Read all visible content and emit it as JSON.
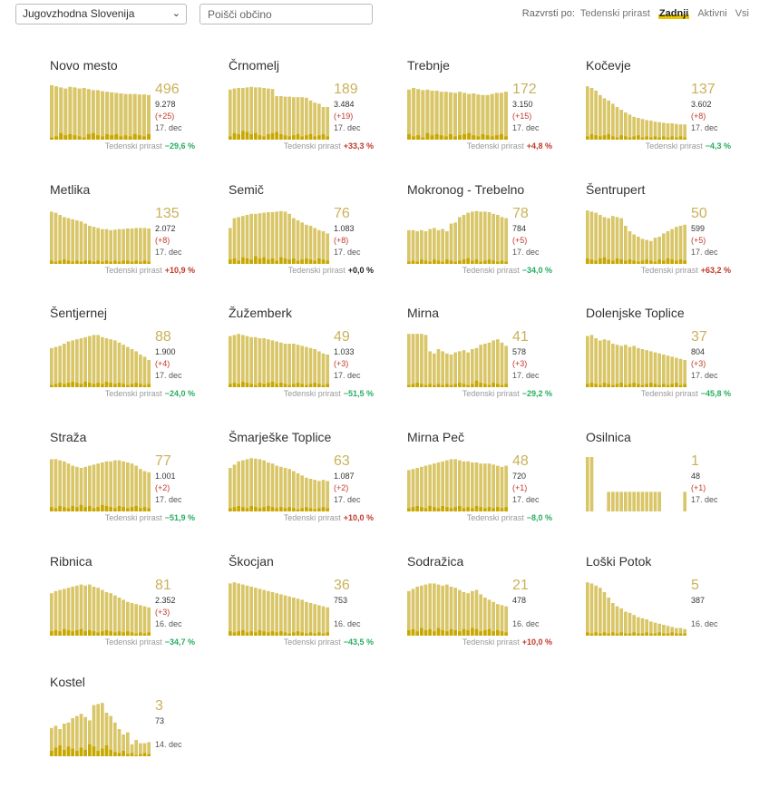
{
  "filters": {
    "region_selected": "Jugovzhodna Slovenija",
    "search_placeholder": "Poišči občino",
    "sort_label": "Razvrsti po:",
    "sort_options": [
      "Tedenski prirast",
      "Zadnji",
      "Aktivni",
      "Vsi"
    ],
    "sort_active": "Zadnji"
  },
  "growth_label": "Tedenski prirast",
  "colors": {
    "bar_active": "#d9c668",
    "bar_daily": "#c8a800",
    "accent": "#e9c400",
    "positive": "#c0392b",
    "negative": "#27ae60"
  },
  "municipalities": [
    {
      "name": "Novo mesto",
      "active": "496",
      "total": "9.278",
      "delta": "(+25)",
      "date": "17. dec",
      "growth": "−29,6 %",
      "trend": "neg",
      "series": [
        100,
        98,
        96,
        94,
        97,
        96,
        94,
        95,
        93,
        91,
        91,
        89,
        88,
        87,
        86,
        85,
        84,
        84,
        84,
        83,
        83,
        82
      ],
      "daily": [
        4,
        6,
        12,
        8,
        10,
        8,
        6,
        4,
        10,
        12,
        8,
        6,
        10,
        8,
        10,
        6,
        8,
        6,
        10,
        8,
        6,
        10
      ]
    },
    {
      "name": "Črnomelj",
      "active": "189",
      "total": "3.484",
      "delta": "(+19)",
      "date": "17. dec",
      "growth": "+33,3 %",
      "trend": "pos",
      "series": [
        92,
        94,
        95,
        95,
        96,
        97,
        96,
        96,
        95,
        94,
        93,
        80,
        80,
        79,
        79,
        78,
        78,
        78,
        77,
        72,
        68,
        66,
        60,
        60
      ],
      "daily": [
        6,
        12,
        10,
        16,
        14,
        10,
        12,
        8,
        6,
        10,
        12,
        14,
        10,
        8,
        6,
        8,
        10,
        6,
        8,
        10,
        6,
        8,
        10,
        6
      ]
    },
    {
      "name": "Trebnje",
      "active": "172",
      "total": "3.150",
      "delta": "(+15)",
      "date": "17. dec",
      "growth": "+4,8 %",
      "trend": "pos",
      "series": [
        92,
        95,
        93,
        91,
        92,
        90,
        90,
        88,
        88,
        87,
        86,
        88,
        86,
        84,
        85,
        83,
        82,
        82,
        84,
        86,
        86,
        88
      ],
      "daily": [
        10,
        6,
        8,
        4,
        12,
        8,
        10,
        8,
        6,
        10,
        6,
        8,
        10,
        12,
        8,
        6,
        10,
        8,
        6,
        8,
        10,
        6
      ]
    },
    {
      "name": "Kočevje",
      "active": "137",
      "total": "3.602",
      "delta": "(+8)",
      "date": "17. dec",
      "growth": "−4,3 %",
      "trend": "neg",
      "series": [
        98,
        95,
        90,
        82,
        76,
        72,
        66,
        60,
        55,
        50,
        46,
        42,
        40,
        38,
        36,
        35,
        33,
        32,
        31,
        30,
        30,
        29,
        28,
        28
      ],
      "daily": [
        6,
        10,
        8,
        6,
        8,
        10,
        6,
        4,
        8,
        6,
        4,
        6,
        8,
        4,
        6,
        4,
        6,
        4,
        6,
        4,
        6,
        4,
        6,
        4
      ]
    },
    {
      "name": "Metlika",
      "active": "135",
      "total": "2.072",
      "delta": "(+8)",
      "date": "17. dec",
      "growth": "+10,9 %",
      "trend": "pos",
      "series": [
        96,
        94,
        90,
        86,
        84,
        82,
        80,
        78,
        74,
        70,
        68,
        66,
        64,
        64,
        62,
        63,
        64,
        64,
        65,
        65,
        66,
        66,
        66,
        65
      ],
      "daily": [
        6,
        4,
        6,
        8,
        6,
        4,
        6,
        4,
        6,
        6,
        4,
        6,
        4,
        6,
        4,
        6,
        4,
        6,
        6,
        4,
        6,
        4,
        6,
        4
      ]
    },
    {
      "name": "Semič",
      "active": "76",
      "total": "1.083",
      "delta": "(+8)",
      "date": "17. dec",
      "growth": "+0,0 %",
      "trend": "zero",
      "series": [
        66,
        84,
        86,
        88,
        90,
        92,
        92,
        93,
        94,
        95,
        95,
        96,
        97,
        96,
        92,
        84,
        80,
        76,
        72,
        70,
        66,
        62,
        60,
        56
      ],
      "daily": [
        8,
        10,
        6,
        12,
        10,
        8,
        14,
        10,
        12,
        8,
        10,
        6,
        12,
        10,
        8,
        10,
        6,
        8,
        10,
        8,
        6,
        10,
        8,
        6
      ]
    },
    {
      "name": "Mokronog - Trebelno",
      "active": "78",
      "total": "784",
      "delta": "(+5)",
      "date": "17. dec",
      "growth": "−34,0 %",
      "trend": "neg",
      "series": [
        62,
        62,
        60,
        62,
        60,
        64,
        66,
        62,
        64,
        60,
        74,
        76,
        86,
        90,
        94,
        96,
        97,
        96,
        96,
        95,
        92,
        90,
        86,
        84
      ],
      "daily": [
        4,
        6,
        4,
        8,
        6,
        4,
        8,
        6,
        4,
        8,
        6,
        4,
        6,
        8,
        10,
        6,
        8,
        4,
        6,
        8,
        6,
        4,
        6,
        4
      ]
    },
    {
      "name": "Šentrupert",
      "active": "50",
      "total": "599",
      "delta": "(+5)",
      "date": "17. dec",
      "growth": "+63,2 %",
      "trend": "pos",
      "series": [
        98,
        96,
        94,
        90,
        86,
        84,
        88,
        86,
        84,
        70,
        60,
        54,
        50,
        46,
        44,
        42,
        48,
        50,
        56,
        60,
        64,
        68,
        70,
        72
      ],
      "daily": [
        10,
        8,
        6,
        10,
        12,
        8,
        6,
        10,
        8,
        6,
        8,
        6,
        4,
        6,
        8,
        6,
        4,
        8,
        6,
        10,
        8,
        6,
        8,
        6
      ]
    },
    {
      "name": "Šentjernej",
      "active": "88",
      "total": "1.900",
      "delta": "(+4)",
      "date": "17. dec",
      "growth": "−24,0 %",
      "trend": "neg",
      "series": [
        72,
        74,
        76,
        80,
        84,
        86,
        88,
        90,
        92,
        94,
        96,
        96,
        92,
        90,
        88,
        86,
        82,
        78,
        74,
        70,
        66,
        60,
        56,
        50
      ],
      "daily": [
        4,
        6,
        8,
        6,
        8,
        10,
        8,
        6,
        10,
        8,
        6,
        8,
        6,
        10,
        8,
        6,
        8,
        6,
        4,
        6,
        8,
        6,
        4,
        6
      ]
    },
    {
      "name": "Žužemberk",
      "active": "49",
      "total": "1.033",
      "delta": "(+3)",
      "date": "17. dec",
      "growth": "−51,5 %",
      "trend": "neg",
      "series": [
        94,
        96,
        98,
        96,
        94,
        92,
        92,
        90,
        90,
        88,
        86,
        84,
        82,
        80,
        80,
        80,
        78,
        76,
        74,
        72,
        70,
        66,
        62,
        60
      ],
      "daily": [
        6,
        8,
        6,
        10,
        8,
        6,
        4,
        8,
        6,
        8,
        10,
        6,
        8,
        6,
        4,
        6,
        8,
        6,
        4,
        6,
        8,
        6,
        4,
        6
      ]
    },
    {
      "name": "Mirna",
      "active": "41",
      "total": "578",
      "delta": "(+3)",
      "date": "17. dec",
      "growth": "−29,2 %",
      "trend": "neg",
      "series": [
        98,
        98,
        98,
        98,
        96,
        66,
        62,
        70,
        66,
        62,
        60,
        64,
        66,
        68,
        64,
        70,
        72,
        78,
        80,
        82,
        86,
        88,
        82,
        76
      ],
      "daily": [
        4,
        6,
        8,
        6,
        4,
        6,
        4,
        6,
        4,
        6,
        4,
        6,
        8,
        6,
        4,
        6,
        12,
        8,
        6,
        4,
        8,
        6,
        4,
        6
      ]
    },
    {
      "name": "Dolenjske Toplice",
      "active": "37",
      "total": "804",
      "delta": "(+3)",
      "date": "17. dec",
      "growth": "−45,8 %",
      "trend": "neg",
      "series": [
        94,
        96,
        90,
        86,
        88,
        86,
        80,
        78,
        76,
        78,
        74,
        76,
        72,
        70,
        68,
        66,
        64,
        62,
        60,
        58,
        56,
        54,
        52,
        50
      ],
      "daily": [
        6,
        8,
        6,
        4,
        8,
        6,
        4,
        6,
        8,
        4,
        6,
        8,
        6,
        4,
        6,
        8,
        6,
        4,
        6,
        4,
        6,
        8,
        4,
        6
      ]
    },
    {
      "name": "Straža",
      "active": "77",
      "total": "1.001",
      "delta": "(+2)",
      "date": "17. dec",
      "growth": "−51,9 %",
      "trend": "neg",
      "series": [
        96,
        96,
        94,
        92,
        88,
        84,
        82,
        80,
        82,
        84,
        86,
        88,
        90,
        92,
        92,
        94,
        94,
        92,
        90,
        88,
        84,
        78,
        74,
        72
      ],
      "daily": [
        8,
        6,
        10,
        8,
        6,
        10,
        8,
        12,
        8,
        10,
        6,
        8,
        12,
        10,
        8,
        6,
        10,
        8,
        6,
        8,
        10,
        6,
        8,
        6
      ]
    },
    {
      "name": "Šmarješke Toplice",
      "active": "63",
      "total": "1.087",
      "delta": "(+2)",
      "date": "17. dec",
      "growth": "+10,0 %",
      "trend": "pos",
      "series": [
        80,
        86,
        92,
        94,
        96,
        98,
        97,
        96,
        94,
        90,
        88,
        84,
        82,
        80,
        78,
        74,
        70,
        66,
        62,
        60,
        58,
        56,
        58,
        56
      ],
      "daily": [
        6,
        8,
        10,
        8,
        6,
        10,
        8,
        6,
        8,
        10,
        8,
        6,
        8,
        6,
        8,
        6,
        4,
        6,
        8,
        6,
        4,
        6,
        8,
        6
      ]
    },
    {
      "name": "Mirna Peč",
      "active": "48",
      "total": "720",
      "delta": "(+1)",
      "date": "17. dec",
      "growth": "−8,0 %",
      "trend": "neg",
      "series": [
        76,
        78,
        80,
        82,
        84,
        86,
        88,
        90,
        92,
        94,
        96,
        96,
        94,
        92,
        92,
        90,
        90,
        88,
        88,
        88,
        86,
        84,
        82,
        84
      ],
      "daily": [
        6,
        8,
        10,
        8,
        6,
        10,
        8,
        6,
        10,
        8,
        6,
        8,
        10,
        6,
        8,
        6,
        10,
        8,
        6,
        8,
        6,
        8,
        6,
        8
      ]
    },
    {
      "name": "Osilnica",
      "active": "1",
      "total": "48",
      "delta": "(+1)",
      "date": "17. dec",
      "growth": "",
      "trend": "none",
      "series": [
        100,
        100,
        0,
        0,
        0,
        36,
        36,
        36,
        36,
        36,
        36,
        36,
        36,
        36,
        36,
        36,
        36,
        36,
        0,
        0,
        0,
        0,
        0,
        36
      ],
      "daily": [
        0,
        0,
        0,
        0,
        0,
        0,
        0,
        0,
        0,
        0,
        0,
        0,
        0,
        0,
        0,
        0,
        0,
        0,
        0,
        0,
        0,
        0,
        0,
        0
      ]
    },
    {
      "name": "Ribnica",
      "active": "81",
      "total": "2.352",
      "delta": "(+3)",
      "date": "16. dec",
      "growth": "−34,7 %",
      "trend": "neg",
      "series": [
        78,
        82,
        84,
        86,
        88,
        90,
        92,
        94,
        92,
        94,
        90,
        88,
        84,
        80,
        78,
        74,
        70,
        66,
        62,
        60,
        58,
        56,
        54,
        52
      ],
      "daily": [
        8,
        10,
        8,
        12,
        10,
        8,
        10,
        12,
        8,
        10,
        8,
        6,
        8,
        10,
        8,
        6,
        8,
        6,
        8,
        6,
        4,
        6,
        4,
        6
      ]
    },
    {
      "name": "Škocjan",
      "active": "36",
      "total": "753",
      "delta": "",
      "date": "16. dec",
      "growth": "−43,5 %",
      "trend": "neg",
      "series": [
        96,
        98,
        96,
        94,
        92,
        90,
        88,
        86,
        84,
        82,
        80,
        78,
        76,
        74,
        72,
        70,
        68,
        66,
        62,
        60,
        58,
        56,
        54,
        52
      ],
      "daily": [
        8,
        6,
        8,
        10,
        6,
        8,
        6,
        10,
        8,
        6,
        8,
        6,
        8,
        6,
        4,
        6,
        8,
        6,
        4,
        6,
        4,
        6,
        4,
        6
      ]
    },
    {
      "name": "Sodražica",
      "active": "21",
      "total": "478",
      "delta": "",
      "date": "16. dec",
      "growth": "+10,0 %",
      "trend": "pos",
      "series": [
        82,
        86,
        90,
        92,
        94,
        96,
        96,
        94,
        92,
        94,
        90,
        88,
        84,
        80,
        78,
        82,
        84,
        76,
        70,
        66,
        62,
        58,
        56,
        54
      ],
      "daily": [
        10,
        12,
        8,
        14,
        10,
        12,
        8,
        14,
        10,
        8,
        12,
        10,
        8,
        12,
        10,
        14,
        12,
        8,
        10,
        12,
        8,
        10,
        8,
        6
      ]
    },
    {
      "name": "Loški Potok",
      "active": "5",
      "total": "387",
      "delta": "",
      "date": "16. dec",
      "growth": "",
      "trend": "none",
      "series": [
        98,
        96,
        92,
        88,
        80,
        70,
        60,
        54,
        50,
        44,
        42,
        38,
        34,
        32,
        30,
        26,
        24,
        22,
        20,
        18,
        16,
        14,
        14,
        12
      ],
      "daily": [
        6,
        4,
        6,
        4,
        6,
        4,
        6,
        4,
        6,
        4,
        4,
        6,
        4,
        4,
        6,
        4,
        4,
        6,
        4,
        4,
        6,
        4,
        4,
        4
      ]
    },
    {
      "name": "Kostel",
      "active": "3",
      "total": "73",
      "delta": "",
      "date": "14. dec",
      "growth": "",
      "trend": "none",
      "series": [
        52,
        56,
        50,
        60,
        62,
        70,
        74,
        78,
        72,
        66,
        94,
        96,
        98,
        80,
        74,
        62,
        50,
        40,
        44,
        22,
        30,
        24,
        24,
        26
      ],
      "daily": [
        10,
        16,
        20,
        12,
        18,
        14,
        10,
        16,
        12,
        22,
        18,
        10,
        14,
        20,
        12,
        8,
        6,
        10,
        4,
        6,
        2,
        4,
        6,
        4
      ]
    }
  ]
}
